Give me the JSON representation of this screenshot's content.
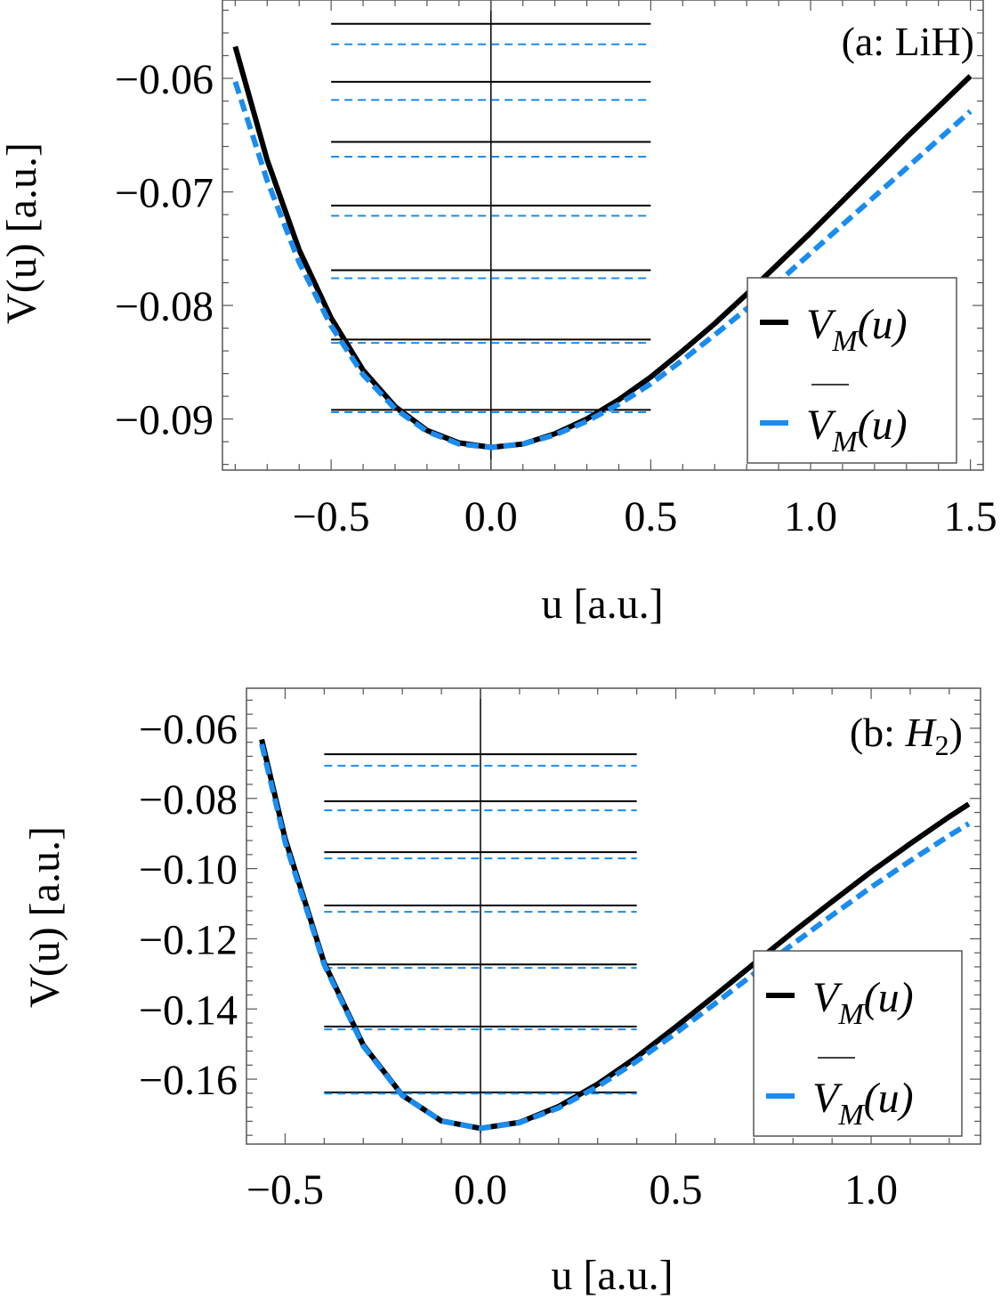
{
  "colors": {
    "exact": "#000000",
    "approx": "#1a8cf0",
    "frame": "#555555"
  },
  "chart_data": [
    {
      "type": "line",
      "panel_label": "(a: LiH)",
      "xlabel": "u [a.u.]",
      "ylabel": "V(u) [a.u.]",
      "xlim": [
        -0.84,
        1.54
      ],
      "ylim": [
        -0.0945,
        -0.0531
      ],
      "xticks": [
        {
          "v": -0.5,
          "label": "−0.5"
        },
        {
          "v": 0.0,
          "label": "0.0"
        },
        {
          "v": 0.5,
          "label": "0.5"
        },
        {
          "v": 1.0,
          "label": "1.0"
        },
        {
          "v": 1.5,
          "label": "1.5"
        }
      ],
      "yticks": [
        {
          "v": -0.06,
          "label": "−0.06"
        },
        {
          "v": -0.07,
          "label": "−0.07"
        },
        {
          "v": -0.08,
          "label": "−0.08"
        },
        {
          "v": -0.09,
          "label": "−0.09"
        }
      ],
      "legend": {
        "position": "bottom-right",
        "entries": [
          {
            "symbol": "V",
            "sub": "M",
            "arg": "(u)",
            "overline": false,
            "series": "exact"
          },
          {
            "symbol": "V",
            "sub": "M",
            "arg": "(u)",
            "overline": true,
            "series": "approx"
          }
        ]
      },
      "series": [
        {
          "name": "V_M(u)",
          "style": "solid",
          "x": [
            -0.8,
            -0.7,
            -0.6,
            -0.5,
            -0.4,
            -0.3,
            -0.2,
            -0.1,
            0,
            0.1,
            0.2,
            0.3,
            0.4,
            0.5,
            0.6,
            0.7,
            0.8,
            0.9,
            1.0,
            1.1,
            1.2,
            1.3,
            1.4,
            1.5
          ],
          "y": [
            -0.0572,
            -0.0672,
            -0.0751,
            -0.0811,
            -0.0857,
            -0.0889,
            -0.091,
            -0.0921,
            -0.0925,
            -0.0922,
            -0.0913,
            -0.09,
            -0.0883,
            -0.0863,
            -0.084,
            -0.0816,
            -0.079,
            -0.0763,
            -0.0736,
            -0.0708,
            -0.068,
            -0.0652,
            -0.0625,
            -0.0598
          ]
        },
        {
          "name": "overline V_M(u)",
          "style": "dashed",
          "x": [
            -0.8,
            -0.7,
            -0.6,
            -0.5,
            -0.4,
            -0.3,
            -0.2,
            -0.1,
            0,
            0.1,
            0.2,
            0.3,
            0.4,
            0.5,
            0.6,
            0.7,
            0.8,
            0.9,
            1.0,
            1.1,
            1.2,
            1.3,
            1.4,
            1.5
          ],
          "y": [
            -0.0603,
            -0.069,
            -0.0762,
            -0.0818,
            -0.0861,
            -0.0891,
            -0.0911,
            -0.0922,
            -0.0925,
            -0.0922,
            -0.0914,
            -0.0902,
            -0.0887,
            -0.0869,
            -0.0848,
            -0.0826,
            -0.0803,
            -0.0779,
            -0.0754,
            -0.0729,
            -0.0704,
            -0.0679,
            -0.0654,
            -0.0629
          ]
        }
      ],
      "levels": {
        "u_range": [
          -0.5,
          0.5
        ],
        "exact": [
          -0.0552,
          -0.0603,
          -0.0656,
          -0.0712,
          -0.0769,
          -0.083,
          -0.0892
        ],
        "approx": [
          -0.057,
          -0.0619,
          -0.0669,
          -0.0721,
          -0.0776,
          -0.0833,
          -0.0894
        ]
      }
    },
    {
      "type": "line",
      "panel_label_prefix": "(b: ",
      "panel_label_species": "H",
      "panel_label_sub": "2",
      "panel_label_suffix": ")",
      "xlabel": "u [a.u.]",
      "ylabel": "V(u) [a.u.]",
      "xlim": [
        -0.599,
        1.28
      ],
      "ylim": [
        -0.1785,
        -0.0486
      ],
      "xticks": [
        {
          "v": -0.5,
          "label": "−0.5"
        },
        {
          "v": 0.0,
          "label": "0.0"
        },
        {
          "v": 0.5,
          "label": "0.5"
        },
        {
          "v": 1.0,
          "label": "1.0"
        }
      ],
      "yticks": [
        {
          "v": -0.06,
          "label": "−0.06"
        },
        {
          "v": -0.08,
          "label": "−0.08"
        },
        {
          "v": -0.1,
          "label": "−0.10"
        },
        {
          "v": -0.12,
          "label": "−0.12"
        },
        {
          "v": -0.14,
          "label": "−0.14"
        },
        {
          "v": -0.16,
          "label": "−0.16"
        }
      ],
      "legend": {
        "position": "bottom-right",
        "entries": [
          {
            "symbol": "V",
            "sub": "M",
            "arg": "(u)",
            "overline": false,
            "series": "exact"
          },
          {
            "symbol": "V",
            "sub": "M",
            "arg": "(u)",
            "overline": true,
            "series": "approx"
          }
        ]
      },
      "series": [
        {
          "name": "V_M(u)",
          "style": "solid",
          "x": [
            -0.56,
            -0.5,
            -0.4,
            -0.3,
            -0.2,
            -0.1,
            0,
            0.1,
            0.2,
            0.3,
            0.4,
            0.5,
            0.6,
            0.7,
            0.8,
            0.9,
            1.0,
            1.1,
            1.2,
            1.25
          ],
          "y": [
            -0.0632,
            -0.0915,
            -0.1269,
            -0.1503,
            -0.1646,
            -0.1719,
            -0.174,
            -0.1723,
            -0.1678,
            -0.1614,
            -0.1537,
            -0.1451,
            -0.1362,
            -0.1271,
            -0.1181,
            -0.1094,
            -0.1009,
            -0.0929,
            -0.0852,
            -0.0816
          ]
        },
        {
          "name": "overline V_M(u)",
          "style": "dashed",
          "x": [
            -0.56,
            -0.5,
            -0.4,
            -0.3,
            -0.2,
            -0.1,
            0,
            0.1,
            0.2,
            0.3,
            0.4,
            0.5,
            0.6,
            0.7,
            0.8,
            0.9,
            1.0,
            1.1,
            1.2,
            1.25
          ],
          "y": [
            -0.0645,
            -0.0925,
            -0.1274,
            -0.1506,
            -0.1647,
            -0.1719,
            -0.174,
            -0.1724,
            -0.1682,
            -0.1621,
            -0.1549,
            -0.1469,
            -0.1385,
            -0.13,
            -0.1215,
            -0.1133,
            -0.1053,
            -0.0978,
            -0.0906,
            -0.0872
          ]
        }
      ],
      "levels": {
        "u_range": [
          -0.4,
          0.4
        ],
        "exact": [
          -0.0674,
          -0.0808,
          -0.0953,
          -0.1105,
          -0.1273,
          -0.145,
          -0.1638
        ],
        "approx": [
          -0.0707,
          -0.0834,
          -0.0971,
          -0.1123,
          -0.1283,
          -0.1458,
          -0.1641
        ]
      }
    }
  ]
}
